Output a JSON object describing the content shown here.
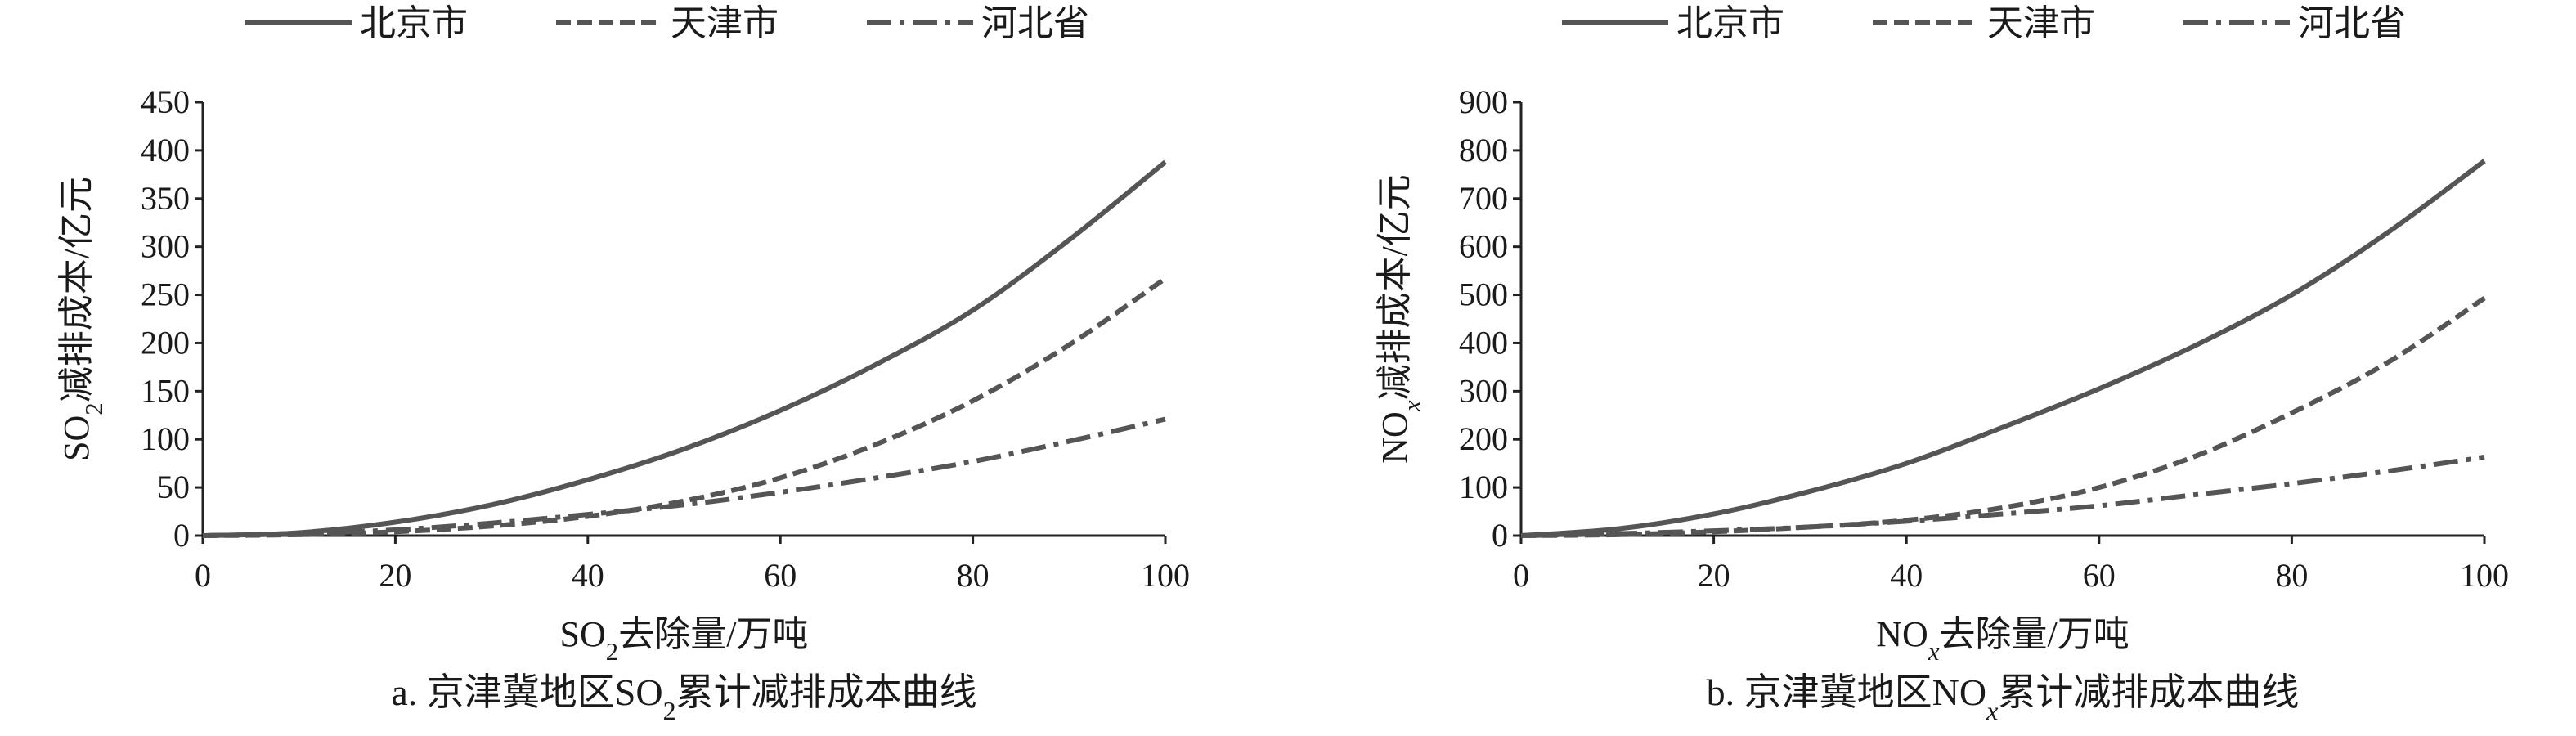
{
  "chart_data": [
    {
      "type": "line",
      "caption": "a. 京津冀地区SO2累计减排成本曲线",
      "xlabel": "SO2去除量/万吨",
      "ylabel": "SO2减排成本/亿元",
      "xlim": [
        0,
        100
      ],
      "ylim": [
        0,
        450
      ],
      "xticks": [
        0,
        20,
        40,
        60,
        80,
        100
      ],
      "yticks": [
        0,
        50,
        100,
        150,
        200,
        250,
        300,
        350,
        400,
        450
      ],
      "legend_position": "top",
      "series": [
        {
          "name": "北京市",
          "style": "solid",
          "x": [
            0,
            10,
            20,
            30,
            40,
            50,
            60,
            70,
            80,
            90,
            100
          ],
          "y": [
            0,
            3,
            14,
            32,
            58,
            90,
            130,
            178,
            234,
            307,
            388
          ]
        },
        {
          "name": "天津市",
          "style": "dashed",
          "x": [
            0,
            10,
            20,
            30,
            40,
            50,
            60,
            70,
            80,
            90,
            100
          ],
          "y": [
            0,
            1,
            4,
            10,
            20,
            36,
            60,
            95,
            140,
            198,
            267
          ]
        },
        {
          "name": "河北省",
          "style": "dashdot",
          "x": [
            0,
            10,
            20,
            30,
            40,
            50,
            60,
            70,
            80,
            90,
            100
          ],
          "y": [
            0,
            2,
            6,
            13,
            22,
            32,
            45,
            60,
            77,
            98,
            121
          ]
        }
      ]
    },
    {
      "type": "line",
      "caption": "b. 京津冀地区NOx累计减排成本曲线",
      "xlabel": "NOx去除量/万吨",
      "ylabel": "NOx减排成本/亿元",
      "xlim": [
        0,
        100
      ],
      "ylim": [
        0,
        900
      ],
      "xticks": [
        0,
        20,
        40,
        60,
        80,
        100
      ],
      "yticks": [
        0,
        100,
        200,
        300,
        400,
        500,
        600,
        700,
        800,
        900
      ],
      "legend_position": "top",
      "series": [
        {
          "name": "北京市",
          "style": "solid",
          "x": [
            0,
            10,
            20,
            30,
            40,
            50,
            60,
            70,
            80,
            90,
            100
          ],
          "y": [
            0,
            14,
            45,
            92,
            150,
            225,
            305,
            395,
            500,
            630,
            778
          ]
        },
        {
          "name": "天津市",
          "style": "dashed",
          "x": [
            0,
            10,
            20,
            30,
            40,
            50,
            60,
            70,
            80,
            90,
            100
          ],
          "y": [
            0,
            2,
            8,
            18,
            32,
            58,
            100,
            165,
            255,
            360,
            493
          ]
        },
        {
          "name": "河北省",
          "style": "dashdot",
          "x": [
            0,
            10,
            20,
            30,
            40,
            50,
            60,
            70,
            80,
            90,
            100
          ],
          "y": [
            0,
            4,
            10,
            18,
            30,
            45,
            62,
            85,
            108,
            134,
            163
          ]
        }
      ]
    }
  ],
  "colors": {
    "line": "#555555",
    "axis": "#222222",
    "text": "#1a1a1a"
  }
}
